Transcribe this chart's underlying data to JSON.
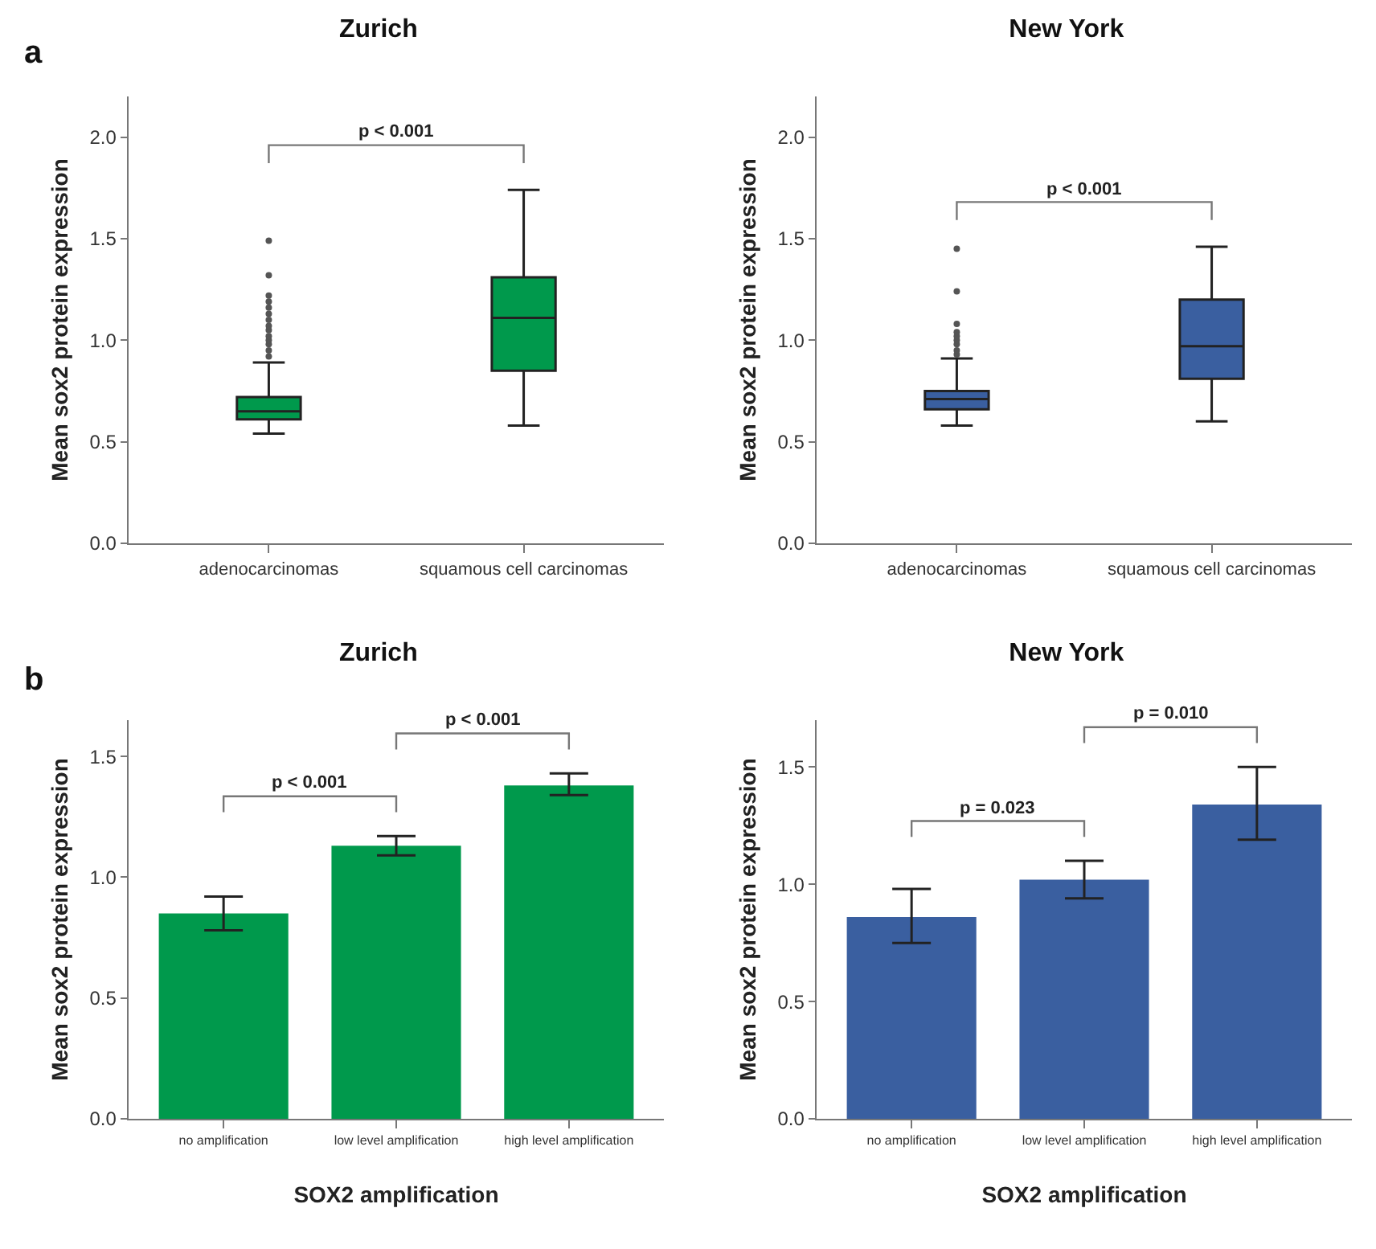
{
  "chart_data": [
    {
      "type": "box",
      "title": "Zurich",
      "ylabel": "Mean sox2 protein expression",
      "categories": [
        "adenocarcinomas",
        "squamous cell carcinomas"
      ],
      "ylim": [
        0,
        2.2
      ],
      "yticks": [
        {
          "value": 0,
          "label": "0.0"
        },
        {
          "value": 0.5,
          "label": "0.5"
        },
        {
          "value": 1,
          "label": "1.0"
        },
        {
          "value": 1.5,
          "label": "1.5"
        },
        {
          "value": 2,
          "label": "2.0"
        }
      ],
      "annotations": [
        "a",
        "p < 0.001"
      ],
      "series": [
        {
          "color": "#00994c",
          "boxes": [
            {
              "low": 0.54,
              "q1": 0.61,
              "median": 0.65,
              "q3": 0.72,
              "high": 0.89,
              "outliers": [
                0.92,
                0.95,
                0.98,
                1.0,
                1.02,
                1.05,
                1.07,
                1.1,
                1.13,
                1.16,
                1.19,
                1.22,
                1.32,
                1.49
              ]
            },
            {
              "low": 0.58,
              "q1": 0.85,
              "median": 1.11,
              "q3": 1.31,
              "high": 1.74
            }
          ]
        }
      ]
    },
    {
      "type": "box",
      "title": "New York",
      "ylabel": "Mean sox2 protein expression",
      "categories": [
        "adenocarcinomas",
        "squamous cell carcinomas"
      ],
      "ylim": [
        0,
        2.2
      ],
      "yticks": [
        {
          "value": 0,
          "label": "0.0"
        },
        {
          "value": 0.5,
          "label": "0.5"
        },
        {
          "value": 1,
          "label": "1.0"
        },
        {
          "value": 1.5,
          "label": "1.5"
        },
        {
          "value": 2,
          "label": "2.0"
        }
      ],
      "annotations": [
        "p < 0.001"
      ],
      "series": [
        {
          "color": "#3a5fa0",
          "boxes": [
            {
              "low": 0.58,
              "q1": 0.66,
              "median": 0.71,
              "q3": 0.75,
              "high": 0.91,
              "outliers": [
                0.93,
                0.95,
                0.98,
                1.0,
                1.02,
                1.04,
                1.08,
                1.24,
                1.45
              ]
            },
            {
              "low": 0.6,
              "q1": 0.81,
              "median": 0.97,
              "q3": 1.2,
              "high": 1.46
            }
          ]
        }
      ]
    },
    {
      "type": "bar",
      "title": "Zurich",
      "ylabel": "Mean sox2 protein expression",
      "xlabel": "SOX2 amplification",
      "categories": [
        "no amplification",
        "low level amplification",
        "high level amplification"
      ],
      "ylim": [
        0,
        1.65
      ],
      "yticks": [
        {
          "value": 0,
          "label": "0.0"
        },
        {
          "value": 0.5,
          "label": "0.5"
        },
        {
          "value": 1,
          "label": "1.0"
        },
        {
          "value": 1.5,
          "label": "1.5"
        }
      ],
      "annotations": [
        "b",
        "p < 0.001",
        "p < 0.001"
      ],
      "series": [
        {
          "color": "#00994c",
          "values": [
            0.85,
            1.13,
            1.38
          ],
          "errors": [
            [
              0.78,
              0.92
            ],
            [
              1.09,
              1.17
            ],
            [
              1.34,
              1.43
            ]
          ]
        }
      ]
    },
    {
      "type": "bar",
      "title": "New York",
      "ylabel": "Mean sox2 protein expression",
      "xlabel": "SOX2 amplification",
      "categories": [
        "no amplification",
        "low level amplification",
        "high level amplification"
      ],
      "ylim": [
        0,
        1.7
      ],
      "yticks": [
        {
          "value": 0,
          "label": "0.0"
        },
        {
          "value": 0.5,
          "label": "0.5"
        },
        {
          "value": 1,
          "label": "1.0"
        },
        {
          "value": 1.5,
          "label": "1.5"
        }
      ],
      "annotations": [
        "p = 0.023",
        "p = 0.010"
      ],
      "series": [
        {
          "color": "#3a5fa0",
          "values": [
            0.86,
            1.02,
            1.34
          ],
          "errors": [
            [
              0.75,
              0.98
            ],
            [
              0.94,
              1.1
            ],
            [
              1.19,
              1.5
            ]
          ]
        }
      ]
    }
  ]
}
